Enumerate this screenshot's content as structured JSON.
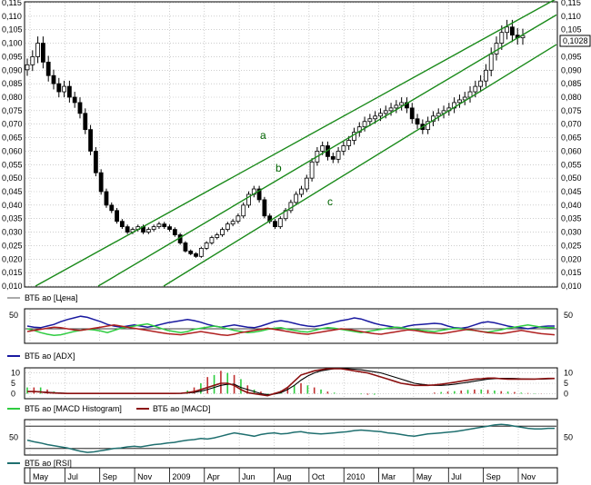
{
  "colors": {
    "background": "#ffffff",
    "panel_border": "#000000",
    "grid": "#b0b0b0",
    "candle": "#000000",
    "channel": "#1a8a1a",
    "adx": "#1a1aa0",
    "di_plus": "#2ecc40",
    "di_minus": "#b02020",
    "macd": "#8b1010",
    "signal": "#000000",
    "hist_pos": "#2ecc40",
    "hist_neg": "#c03030",
    "rsi": "#1f6f6f",
    "last_price_box": "#000000"
  },
  "chart_data": [
    {
      "type": "candlestick",
      "panel": "price",
      "legend": "ВТБ ао [Цена]",
      "ylim": [
        0.01,
        0.115
      ],
      "y_ticks": [
        "0,115",
        "0,110",
        "0,105",
        "0,100",
        "0,095",
        "0,090",
        "0,085",
        "0,080",
        "0,075",
        "0,070",
        "0,065",
        "0,060",
        "0,055",
        "0,050",
        "0,045",
        "0,040",
        "0,035",
        "0,030",
        "0,025",
        "0,020",
        "0,015",
        "0,010"
      ],
      "last_price_label": "0,1028",
      "channel_labels": [
        "a",
        "b",
        "c"
      ],
      "closes": [
        0.092,
        0.095,
        0.1,
        0.093,
        0.088,
        0.085,
        0.082,
        0.084,
        0.08,
        0.078,
        0.074,
        0.068,
        0.06,
        0.052,
        0.045,
        0.04,
        0.038,
        0.034,
        0.032,
        0.03,
        0.031,
        0.032,
        0.03,
        0.031,
        0.032,
        0.033,
        0.032,
        0.031,
        0.029,
        0.026,
        0.023,
        0.022,
        0.021,
        0.024,
        0.026,
        0.028,
        0.029,
        0.031,
        0.033,
        0.034,
        0.036,
        0.04,
        0.044,
        0.046,
        0.042,
        0.036,
        0.034,
        0.032,
        0.035,
        0.038,
        0.041,
        0.044,
        0.046,
        0.05,
        0.056,
        0.06,
        0.062,
        0.058,
        0.057,
        0.06,
        0.062,
        0.064,
        0.067,
        0.069,
        0.071,
        0.072,
        0.073,
        0.074,
        0.075,
        0.076,
        0.077,
        0.078,
        0.076,
        0.072,
        0.07,
        0.068,
        0.071,
        0.073,
        0.074,
        0.075,
        0.076,
        0.078,
        0.079,
        0.08,
        0.082,
        0.084,
        0.086,
        0.09,
        0.096,
        0.1,
        0.104,
        0.106,
        0.103,
        0.102,
        0.1028
      ]
    },
    {
      "type": "line",
      "panel": "adx",
      "legend": "ВТБ ао [ADX]",
      "ylim": [
        0,
        60
      ],
      "y_ticks": [
        "50"
      ],
      "series": [
        {
          "key": "adx",
          "values": [
            30,
            28,
            27,
            30,
            33,
            38,
            42,
            45,
            48,
            46,
            42,
            38,
            33,
            30,
            28,
            30,
            32,
            30,
            28,
            30,
            33,
            36,
            38,
            40,
            42,
            40,
            37,
            33,
            30,
            28,
            30,
            32,
            30,
            28,
            27,
            30,
            34,
            38,
            40,
            38,
            35,
            32,
            30,
            29,
            31,
            34,
            37,
            40,
            42,
            45,
            43,
            39,
            35,
            32,
            30,
            28,
            27,
            30,
            32,
            33,
            34,
            35,
            34,
            30,
            27,
            26,
            28,
            32,
            36,
            38,
            36,
            33,
            30,
            28,
            27,
            25,
            27,
            29,
            30,
            30
          ]
        },
        {
          "key": "di_plus",
          "values": [
            25,
            22,
            18,
            15,
            13,
            14,
            17,
            20,
            22,
            24,
            23,
            21,
            18,
            22,
            26,
            28,
            30,
            32,
            34,
            30,
            26,
            22,
            20,
            18,
            20,
            24,
            26,
            28,
            30,
            28,
            25,
            22,
            20,
            18,
            19,
            21,
            24,
            26,
            27,
            24,
            22,
            20,
            19,
            22,
            25,
            27,
            26,
            24,
            22,
            20,
            18,
            20,
            22,
            24,
            26,
            28,
            27,
            25,
            24,
            22,
            21,
            20,
            22,
            24,
            26,
            25,
            23,
            22,
            20,
            19,
            21,
            23,
            26,
            28,
            30,
            32,
            30,
            28,
            27,
            27
          ]
        },
        {
          "key": "di_minus",
          "values": [
            20,
            22,
            24,
            26,
            28,
            27,
            25,
            23,
            22,
            24,
            26,
            28,
            30,
            32,
            30,
            28,
            26,
            24,
            22,
            20,
            18,
            16,
            15,
            14,
            16,
            18,
            20,
            18,
            16,
            14,
            13,
            15,
            18,
            20,
            22,
            24,
            26,
            24,
            22,
            20,
            18,
            16,
            15,
            17,
            19,
            21,
            23,
            25,
            24,
            22,
            20,
            18,
            16,
            15,
            17,
            19,
            21,
            23,
            22,
            20,
            18,
            17,
            16,
            18,
            20,
            22,
            24,
            22,
            20,
            18,
            17,
            16,
            18,
            20,
            22,
            20,
            18,
            16,
            15,
            14
          ]
        }
      ]
    },
    {
      "type": "bar+line",
      "panel": "macd",
      "legend_hist": "ВТБ ао [MACD Histogram]",
      "legend_macd": "ВТБ ао [MACD]",
      "ylim": [
        -2,
        12
      ],
      "y_ticks": [
        "10",
        "5",
        "0"
      ],
      "macd": [
        1,
        1,
        0.8,
        0.5,
        0.3,
        0.2,
        0.1,
        0.1,
        0.1,
        0.1,
        0.1,
        0.1,
        0.1,
        0.1,
        0.1,
        0.1,
        0.1,
        0.1,
        0.1,
        0.1,
        0.1,
        0.1,
        0.1,
        0.2,
        0.5,
        1,
        2,
        3,
        4,
        5,
        5,
        4,
        2,
        0.5,
        0,
        -0.5,
        -1,
        0,
        1,
        3,
        6,
        9,
        10,
        11,
        11.5,
        12,
        12,
        12,
        11.5,
        11,
        10.5,
        10,
        9,
        8,
        7,
        6,
        5,
        4.5,
        4,
        4,
        4,
        4.2,
        4.5,
        5,
        5.5,
        6,
        6.5,
        7,
        7.2,
        7.5,
        7.5,
        7.2,
        7,
        7,
        7,
        7,
        7,
        7.2,
        7.3,
        7.3
      ],
      "signal": [
        1,
        1,
        0.9,
        0.7,
        0.5,
        0.3,
        0.2,
        0.1,
        0.1,
        0.1,
        0.1,
        0.1,
        0.1,
        0.1,
        0.1,
        0.1,
        0.1,
        0.1,
        0.1,
        0.1,
        0.1,
        0.1,
        0.1,
        0.1,
        0.3,
        0.6,
        1.2,
        2,
        3,
        4,
        4.5,
        4.5,
        3,
        2,
        1,
        0,
        -0.5,
        -0.2,
        0.5,
        2,
        4,
        6.5,
        8.5,
        10,
        11,
        11.5,
        12,
        12,
        12,
        11.8,
        11.5,
        11,
        10.5,
        10,
        9,
        8,
        7,
        6,
        5,
        4.5,
        4.2,
        4,
        4,
        4.2,
        4.5,
        5,
        5.5,
        6,
        6.5,
        7,
        7.2,
        7.4,
        7.4,
        7.3,
        7.2,
        7.1,
        7,
        7,
        7.1,
        7.2
      ],
      "histogram": [
        3,
        3,
        3,
        2,
        1,
        0.5,
        0.2,
        0.1,
        0,
        0,
        0,
        0,
        0,
        0,
        0,
        0,
        0,
        0,
        0,
        0,
        0,
        0,
        0,
        0.2,
        1.5,
        3,
        5,
        8,
        9,
        11,
        10,
        9,
        7,
        4,
        2,
        1,
        -0.5,
        0.5,
        1.5,
        3,
        4,
        5,
        4,
        3,
        2,
        1,
        0.5,
        0,
        0,
        0,
        -0.3,
        -0.5,
        -0.5,
        0,
        0,
        0,
        0,
        0,
        0,
        0,
        0,
        0.5,
        0.8,
        1,
        1.2,
        1.5,
        1.8,
        2,
        2,
        1.8,
        1.5,
        1.2,
        1,
        0.8,
        0.5,
        0.3,
        0.2,
        0.1,
        0,
        0
      ]
    },
    {
      "type": "line",
      "panel": "rsi",
      "legend": "ВТБ ао [RSI]",
      "ylim": [
        20,
        80
      ],
      "y_ticks": [
        "50"
      ],
      "values": [
        45,
        42,
        40,
        37,
        35,
        33,
        31,
        28,
        25,
        23,
        24,
        26,
        28,
        30,
        31,
        33,
        34,
        33,
        35,
        37,
        38,
        40,
        41,
        43,
        45,
        46,
        48,
        47,
        49,
        52,
        55,
        58,
        56,
        54,
        52,
        55,
        57,
        58,
        56,
        57,
        59,
        60,
        58,
        57,
        56,
        57,
        58,
        59,
        60,
        62,
        63,
        62,
        61,
        60,
        58,
        57,
        55,
        53,
        52,
        54,
        56,
        57,
        58,
        59,
        60,
        62,
        64,
        66,
        68,
        70,
        72,
        73,
        72,
        70,
        68,
        66,
        65,
        65,
        66,
        66
      ]
    }
  ],
  "x_axis": {
    "ticks": [
      "May",
      "Jul",
      "Sep",
      "Nov",
      "2009",
      "Apr",
      "Jun",
      "Aug",
      "Oct",
      "2010",
      "Mar",
      "May",
      "Jul",
      "Sep",
      "Nov"
    ]
  }
}
